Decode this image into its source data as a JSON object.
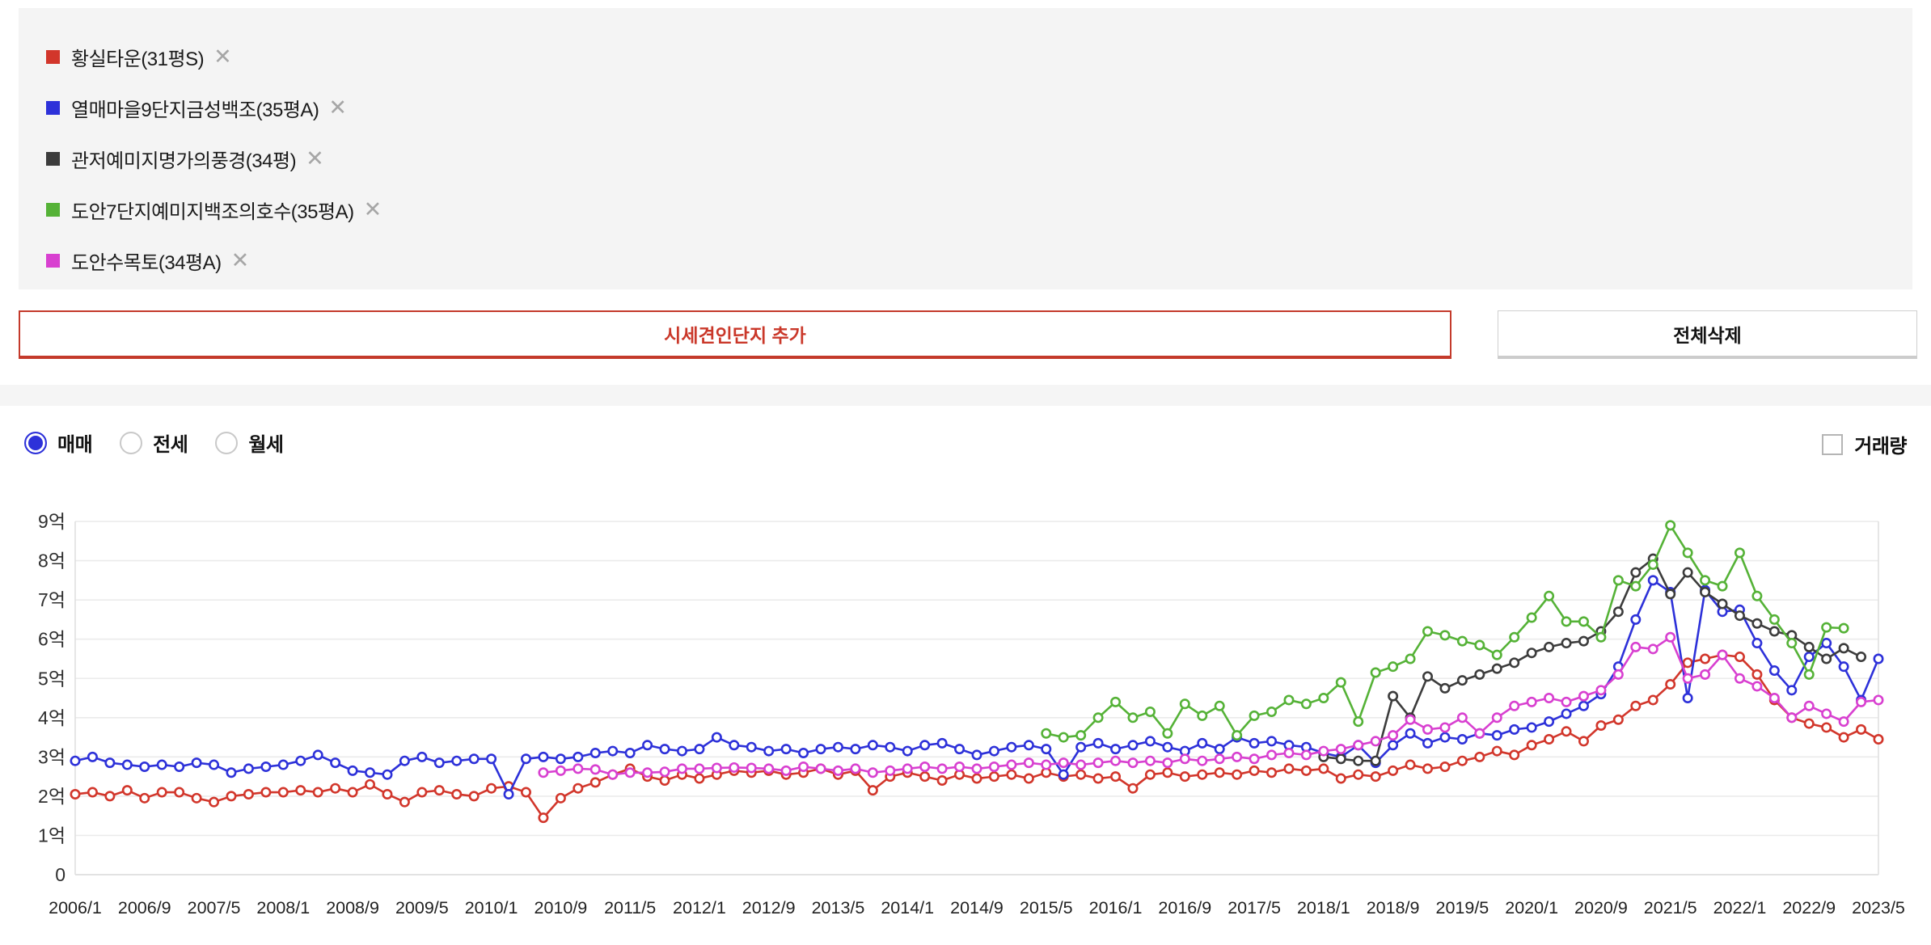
{
  "legend": {
    "remove_icon": "✕",
    "items": [
      {
        "label": "황실타운(31평S)",
        "color": "#d2362b"
      },
      {
        "label": "열매마을9단지금성백조(35평A)",
        "color": "#2d31d9"
      },
      {
        "label": "관저예미지명가의풍경(34평)",
        "color": "#3c3c3c"
      },
      {
        "label": "도안7단지예미지백조의호수(35평A)",
        "color": "#55b237"
      },
      {
        "label": "도안수목토(34평A)",
        "color": "#d840d0"
      }
    ]
  },
  "actions": {
    "add_button": "시세견인단지 추가",
    "clear_button": "전체삭제"
  },
  "controls": {
    "radios": [
      {
        "label": "매매",
        "selected": true
      },
      {
        "label": "전세",
        "selected": false
      },
      {
        "label": "월세",
        "selected": false
      }
    ],
    "volume_checkbox": {
      "label": "거래량",
      "checked": false
    }
  },
  "chart_data": {
    "type": "line",
    "title": "",
    "unit": "억원",
    "ylim": [
      0,
      9.3
    ],
    "y_ticks": [
      "0",
      "1억",
      "2억",
      "3억",
      "4억",
      "5억",
      "6억",
      "7억",
      "8억",
      "9억"
    ],
    "x_start": "2006/1",
    "x_end": "2023/5",
    "total_months": 208,
    "x_tick_interval_months": 8,
    "x_tick_labels": [
      "2006/1",
      "2006/9",
      "2007/5",
      "2008/1",
      "2008/9",
      "2009/5",
      "2010/1",
      "2010/9",
      "2011/5",
      "2012/1",
      "2012/9",
      "2013/5",
      "2014/1",
      "2014/9",
      "2015/5",
      "2016/1",
      "2016/9",
      "2017/5",
      "2018/1",
      "2018/9",
      "2019/5",
      "2020/1",
      "2020/9",
      "2021/5",
      "2022/1",
      "2022/9",
      "2023/5"
    ],
    "grid": true,
    "legend_position": "top-left-panel",
    "series": [
      {
        "name": "황실타운(31평S)",
        "color": "#d2362b",
        "start_month": 0,
        "step": 2,
        "values": [
          2.05,
          2.1,
          2.0,
          2.15,
          1.95,
          2.1,
          2.1,
          1.95,
          1.85,
          2.0,
          2.05,
          2.1,
          2.1,
          2.15,
          2.1,
          2.2,
          2.1,
          2.3,
          2.05,
          1.85,
          2.1,
          2.15,
          2.05,
          2.0,
          2.2,
          2.25,
          2.1,
          1.45,
          1.95,
          2.2,
          2.35,
          2.55,
          2.7,
          2.5,
          2.4,
          2.55,
          2.45,
          2.55,
          2.65,
          2.6,
          2.65,
          2.55,
          2.6,
          2.7,
          2.55,
          2.65,
          2.15,
          2.5,
          2.6,
          2.5,
          2.4,
          2.55,
          2.45,
          2.5,
          2.55,
          2.45,
          2.6,
          2.5,
          2.55,
          2.45,
          2.5,
          2.2,
          2.55,
          2.6,
          2.5,
          2.55,
          2.6,
          2.55,
          2.65,
          2.6,
          2.7,
          2.65,
          2.7,
          2.45,
          2.55,
          2.5,
          2.65,
          2.8,
          2.7,
          2.75,
          2.9,
          3.0,
          3.15,
          3.05,
          3.3,
          3.45,
          3.65,
          3.4,
          3.8,
          3.95,
          4.3,
          4.45,
          4.85,
          5.4,
          5.5,
          5.6,
          5.55,
          5.1,
          4.45,
          4.0,
          3.85,
          3.75,
          3.5,
          3.7,
          3.45
        ]
      },
      {
        "name": "열매마을9단지금성백조(35평A)",
        "color": "#2d31d9",
        "start_month": 0,
        "step": 2,
        "values": [
          2.9,
          3.0,
          2.85,
          2.8,
          2.75,
          2.8,
          2.75,
          2.85,
          2.8,
          2.6,
          2.7,
          2.75,
          2.8,
          2.9,
          3.05,
          2.85,
          2.65,
          2.6,
          2.55,
          2.9,
          3.0,
          2.85,
          2.9,
          2.95,
          2.95,
          2.05,
          2.95,
          3.0,
          2.95,
          3.0,
          3.1,
          3.15,
          3.1,
          3.3,
          3.2,
          3.15,
          3.2,
          3.5,
          3.3,
          3.25,
          3.15,
          3.2,
          3.1,
          3.2,
          3.25,
          3.2,
          3.3,
          3.25,
          3.15,
          3.3,
          3.35,
          3.2,
          3.05,
          3.15,
          3.25,
          3.3,
          3.2,
          2.55,
          3.25,
          3.35,
          3.2,
          3.3,
          3.4,
          3.25,
          3.15,
          3.35,
          3.2,
          3.5,
          3.35,
          3.4,
          3.3,
          3.25,
          3.1,
          3.0,
          3.3,
          2.85,
          3.3,
          3.6,
          3.35,
          3.5,
          3.45,
          3.6,
          3.55,
          3.7,
          3.75,
          3.9,
          4.1,
          4.3,
          4.6,
          5.3,
          6.5,
          7.5,
          7.2,
          4.5,
          7.25,
          6.7,
          6.75,
          5.9,
          5.2,
          4.7,
          5.55,
          5.9,
          5.3,
          4.45,
          5.5
        ]
      },
      {
        "name": "관저예미지명가의풍경(34평)",
        "color": "#3c3c3c",
        "start_month": 144,
        "step": 2,
        "values": [
          3.0,
          2.95,
          2.9,
          2.9,
          4.55,
          4.0,
          5.05,
          4.75,
          4.95,
          5.1,
          5.25,
          5.4,
          5.65,
          5.8,
          5.9,
          5.95,
          6.2,
          6.7,
          7.7,
          8.05,
          7.15,
          7.7,
          7.2,
          6.9,
          6.6,
          6.4,
          6.2,
          6.1,
          5.8,
          5.5,
          5.77,
          5.55
        ]
      },
      {
        "name": "도안7단지예미지백조의호수(35평A)",
        "color": "#55b237",
        "start_month": 112,
        "step": 2,
        "values": [
          3.6,
          3.5,
          3.55,
          4.0,
          4.4,
          4.0,
          4.15,
          3.6,
          4.35,
          4.05,
          4.3,
          3.55,
          4.05,
          4.15,
          4.45,
          4.35,
          4.5,
          4.9,
          3.9,
          5.15,
          5.3,
          5.5,
          6.2,
          6.1,
          5.95,
          5.85,
          5.6,
          6.05,
          6.55,
          7.1,
          6.45,
          6.45,
          6.05,
          7.5,
          7.35,
          7.9,
          8.9,
          8.2,
          7.5,
          7.35,
          8.2,
          7.1,
          6.5,
          5.9,
          5.1,
          6.3,
          6.28
        ]
      },
      {
        "name": "도안수목토(34평A)",
        "color": "#d840d0",
        "start_month": 54,
        "step": 2,
        "values": [
          2.6,
          2.65,
          2.7,
          2.68,
          2.55,
          2.6,
          2.6,
          2.62,
          2.7,
          2.7,
          2.72,
          2.73,
          2.72,
          2.7,
          2.65,
          2.75,
          2.7,
          2.65,
          2.7,
          2.6,
          2.65,
          2.7,
          2.75,
          2.7,
          2.75,
          2.7,
          2.75,
          2.8,
          2.85,
          2.8,
          2.85,
          2.8,
          2.85,
          2.9,
          2.85,
          2.9,
          2.85,
          2.95,
          2.9,
          2.95,
          3.0,
          2.95,
          3.05,
          3.1,
          3.05,
          3.15,
          3.2,
          3.3,
          3.4,
          3.55,
          3.95,
          3.7,
          3.75,
          4.0,
          3.6,
          4.0,
          4.3,
          4.4,
          4.5,
          4.4,
          4.55,
          4.7,
          5.1,
          5.8,
          5.75,
          6.05,
          5.0,
          5.1,
          5.6,
          5.0,
          4.8,
          4.5,
          4.0,
          4.3,
          4.1,
          3.9,
          4.4,
          4.45
        ]
      }
    ]
  }
}
